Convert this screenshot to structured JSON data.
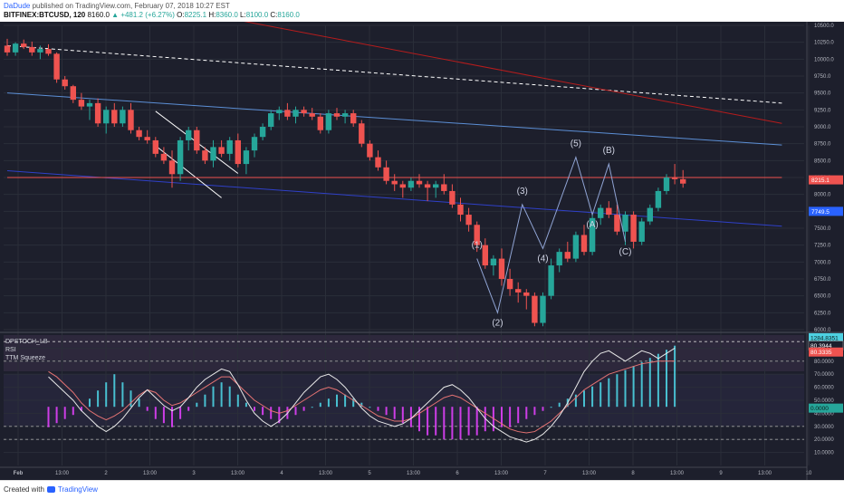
{
  "header": {
    "author": "DaDude",
    "published_text": "published on TradingView.com, February 07, 2018 10:27 EST",
    "symbol": "BITFINEX:BTCUSD, 120",
    "last": "8160.0",
    "change": "▲ +481.2 (+6.27%)",
    "o_label": "O:",
    "o": "8225.1",
    "h_label": "H:",
    "h": "8360.0",
    "l_label": "L:",
    "l": "8100.0",
    "c_label": "C:",
    "c": "8160.0"
  },
  "footer": {
    "created": "Created with",
    "brand": "TradingView"
  },
  "indicators": {
    "stoch": "DPSTOCH_LB",
    "rsi": "RSI",
    "squeeze": "TTM Squeeze"
  },
  "colors": {
    "bg": "#1d1f2c",
    "bull": "#26a69a",
    "bear": "#ef5350",
    "stoch": "#e8e8e8",
    "rsi": "#e57373",
    "squeeze_bull": "#4dd0e1",
    "squeeze_bear": "#e040fb"
  },
  "chart_data": {
    "type": "candlestick",
    "price_axis": {
      "min": 6000,
      "max": 10500,
      "ticks": [
        "10500.0",
        "10250.0",
        "10000.0",
        "9750.0",
        "9500.0",
        "9250.0",
        "9000.0",
        "8750.0",
        "8500.0",
        "8250.0",
        "8000.0",
        "7750.0",
        "7500.0",
        "7250.0",
        "7000.0",
        "6750.0",
        "6500.0",
        "6250.0",
        "6000.0"
      ]
    },
    "price_labels": [
      {
        "text": "8215.1",
        "bg": "#ef5350"
      },
      {
        "text": "7749.5",
        "bg": "#2962ff"
      }
    ],
    "osc_axis": {
      "min": 0,
      "max": 100,
      "ticks": [
        "90.0000",
        "80.0000",
        "70.0000",
        "60.0000",
        "50.0000",
        "40.0000",
        "30.0000",
        "20.0000",
        "10.0000"
      ]
    },
    "osc_labels": [
      {
        "text": "1284.8351",
        "bg": "#4dd0e1"
      },
      {
        "text": "80.3944",
        "bg": "#1d1f2c"
      },
      {
        "text": "80.3335",
        "bg": "#ef5350"
      },
      {
        "text": "0.0000",
        "bg": "#26a69a"
      }
    ],
    "time_labels": [
      "Feb",
      "13:00",
      "2",
      "13:00",
      "3",
      "13:00",
      "4",
      "13:00",
      "5",
      "13:00",
      "6",
      "13:00",
      "7",
      "13:00",
      "8",
      "13:00",
      "9",
      "13:00",
      "10"
    ],
    "candles": [
      [
        10200,
        10300,
        10050,
        10100
      ],
      [
        10100,
        10250,
        10050,
        10230
      ],
      [
        10230,
        10290,
        10150,
        10180
      ],
      [
        10180,
        10260,
        10050,
        10100
      ],
      [
        10100,
        10200,
        10000,
        10150
      ],
      [
        10150,
        10220,
        10050,
        10080
      ],
      [
        10080,
        10100,
        9650,
        9700
      ],
      [
        9700,
        9750,
        9550,
        9600
      ],
      [
        9600,
        9620,
        9350,
        9400
      ],
      [
        9400,
        9500,
        9250,
        9300
      ],
      [
        9300,
        9400,
        9100,
        9350
      ],
      [
        9350,
        9420,
        9000,
        9050
      ],
      [
        9050,
        9300,
        8900,
        9250
      ],
      [
        9250,
        9350,
        9000,
        9050
      ],
      [
        9050,
        9300,
        9000,
        9250
      ],
      [
        9250,
        9350,
        8900,
        8950
      ],
      [
        8950,
        9000,
        8800,
        8850
      ],
      [
        8850,
        8950,
        8750,
        8800
      ],
      [
        8800,
        8850,
        8550,
        8600
      ],
      [
        8600,
        8700,
        8450,
        8500
      ],
      [
        8500,
        8650,
        8100,
        8300
      ],
      [
        8300,
        8850,
        8200,
        8800
      ],
      [
        8800,
        9000,
        8650,
        8950
      ],
      [
        8950,
        9000,
        8600,
        8650
      ],
      [
        8650,
        8700,
        8450,
        8500
      ],
      [
        8500,
        8800,
        8400,
        8700
      ],
      [
        8700,
        8800,
        8550,
        8600
      ],
      [
        8600,
        8850,
        8500,
        8800
      ],
      [
        8800,
        8900,
        8400,
        8450
      ],
      [
        8450,
        8700,
        8300,
        8650
      ],
      [
        8650,
        8900,
        8550,
        8850
      ],
      [
        8850,
        9050,
        8800,
        9000
      ],
      [
        9000,
        9250,
        8950,
        9200
      ],
      [
        9200,
        9300,
        9100,
        9250
      ],
      [
        9250,
        9350,
        9100,
        9150
      ],
      [
        9150,
        9300,
        9050,
        9250
      ],
      [
        9250,
        9300,
        9150,
        9200
      ],
      [
        9200,
        9280,
        9100,
        9150
      ],
      [
        9150,
        9200,
        8900,
        8950
      ],
      [
        8950,
        9250,
        8900,
        9200
      ],
      [
        9200,
        9280,
        9100,
        9150
      ],
      [
        9150,
        9250,
        9050,
        9200
      ],
      [
        9200,
        9250,
        9000,
        9050
      ],
      [
        9050,
        9100,
        8700,
        8750
      ],
      [
        8750,
        8800,
        8500,
        8550
      ],
      [
        8550,
        8650,
        8350,
        8400
      ],
      [
        8400,
        8500,
        8150,
        8200
      ],
      [
        8200,
        8300,
        8050,
        8150
      ],
      [
        8150,
        8200,
        7950,
        8100
      ],
      [
        8100,
        8250,
        8050,
        8200
      ],
      [
        8200,
        8300,
        8100,
        8150
      ],
      [
        8150,
        8200,
        7900,
        8100
      ],
      [
        8100,
        8200,
        7950,
        8150
      ],
      [
        8150,
        8300,
        8000,
        8050
      ],
      [
        8050,
        8150,
        7800,
        7850
      ],
      [
        7850,
        7950,
        7600,
        7700
      ],
      [
        7700,
        7800,
        7450,
        7550
      ],
      [
        7550,
        7600,
        7150,
        7250
      ],
      [
        7250,
        7350,
        6900,
        6950
      ],
      [
        6950,
        7100,
        6800,
        7050
      ],
      [
        7050,
        7200,
        6650,
        6750
      ],
      [
        6750,
        6900,
        6500,
        6600
      ],
      [
        6600,
        6700,
        6400,
        6550
      ],
      [
        6550,
        6600,
        6300,
        6500
      ],
      [
        6500,
        6550,
        6050,
        6100
      ],
      [
        6100,
        6550,
        6050,
        6500
      ],
      [
        6500,
        7050,
        6450,
        6950
      ],
      [
        6950,
        7200,
        6850,
        7150
      ],
      [
        7150,
        7300,
        7000,
        7050
      ],
      [
        7050,
        7450,
        7000,
        7400
      ],
      [
        7400,
        7550,
        7100,
        7150
      ],
      [
        7150,
        7700,
        7100,
        7650
      ],
      [
        7650,
        7850,
        7550,
        7800
      ],
      [
        7800,
        7900,
        7650,
        7700
      ],
      [
        7700,
        7850,
        7400,
        7450
      ],
      [
        7450,
        7750,
        7250,
        7700
      ],
      [
        7700,
        7750,
        7200,
        7300
      ],
      [
        7300,
        7650,
        7250,
        7600
      ],
      [
        7600,
        7850,
        7550,
        7800
      ],
      [
        7800,
        8100,
        7750,
        8050
      ],
      [
        8050,
        8300,
        8000,
        8250
      ],
      [
        8250,
        8450,
        8150,
        8225
      ],
      [
        8225,
        8360,
        8100,
        8160
      ]
    ],
    "trendlines": [
      {
        "points": [
          [
            0,
            10200
          ],
          [
            94,
            9350
          ]
        ],
        "color": "#ffffff",
        "dashed": true
      },
      {
        "points": [
          [
            27,
            10600
          ],
          [
            94,
            9050
          ]
        ],
        "color": "#b71c1c",
        "dashed": false
      },
      {
        "points": [
          [
            0,
            9500
          ],
          [
            94,
            8730
          ]
        ],
        "color": "#5c8fd6",
        "dashed": false
      },
      {
        "points": [
          [
            0,
            8350
          ],
          [
            94,
            7530
          ]
        ],
        "color": "#2f40c8",
        "dashed": false
      },
      {
        "points": [
          [
            18,
            9230
          ],
          [
            28,
            8310
          ]
        ],
        "color": "#ffffff",
        "dashed": false
      },
      {
        "points": [
          [
            18,
            8720
          ],
          [
            26,
            7950
          ]
        ],
        "color": "#ffffff",
        "dashed": false
      },
      {
        "points": [
          [
            0,
            8250
          ],
          [
            94,
            8250
          ]
        ],
        "color": "#ef5350",
        "dashed": false
      }
    ],
    "wave": [
      [
        57,
        7050
      ],
      [
        59.5,
        6250
      ],
      [
        62.5,
        7850
      ],
      [
        65,
        7200
      ],
      [
        69,
        8550
      ],
      [
        71,
        7700
      ],
      [
        73,
        8450
      ],
      [
        75,
        7300
      ]
    ],
    "wave_labels": [
      "(1)",
      "(2)",
      "(3)",
      "(4)",
      "(5)",
      "(A)",
      "(B)",
      "(C)"
    ],
    "stoch": [
      68,
      62,
      56,
      50,
      42,
      36,
      30,
      26,
      30,
      36,
      44,
      52,
      58,
      52,
      46,
      42,
      45,
      52,
      60,
      66,
      70,
      74,
      72,
      62,
      50,
      40,
      34,
      30,
      34,
      40,
      48,
      56,
      62,
      68,
      70,
      66,
      60,
      52,
      44,
      38,
      34,
      32,
      30,
      32,
      36,
      42,
      48,
      54,
      60,
      62,
      58,
      52,
      44,
      36,
      30,
      26,
      22,
      20,
      18,
      20,
      24,
      30,
      38,
      48,
      60,
      72,
      80,
      86,
      88,
      84,
      80,
      84,
      88,
      86,
      82,
      86,
      90
    ],
    "rsi": [
      72,
      68,
      62,
      56,
      48,
      42,
      38,
      35,
      38,
      42,
      48,
      54,
      58,
      56,
      50,
      46,
      48,
      52,
      56,
      60,
      64,
      68,
      68,
      62,
      56,
      50,
      46,
      42,
      40,
      42,
      46,
      50,
      54,
      58,
      60,
      58,
      54,
      50,
      46,
      42,
      38,
      36,
      34,
      34,
      36,
      40,
      44,
      48,
      52,
      54,
      52,
      48,
      44,
      40,
      36,
      32,
      28,
      26,
      25,
      26,
      30,
      34,
      40,
      46,
      52,
      58,
      62,
      66,
      70,
      72,
      74,
      76,
      78,
      79,
      80,
      80,
      80
    ],
    "squeeze": [
      -5,
      -4,
      -3,
      -2,
      -1,
      2,
      4,
      6,
      8,
      6,
      4,
      2,
      -1,
      -3,
      -4,
      -5,
      -3,
      -1,
      1,
      3,
      5,
      6,
      5,
      3,
      1,
      -1,
      -2,
      -3,
      -4,
      -3,
      -2,
      -1,
      0,
      1,
      2,
      3,
      3,
      2,
      1,
      0,
      -1,
      -2,
      -3,
      -4,
      -5,
      -6,
      -7,
      -7,
      -8,
      -8,
      -8,
      -7,
      -7,
      -6,
      -6,
      -5,
      -5,
      -4,
      -3,
      -2,
      -1,
      0,
      1,
      2,
      3,
      4,
      5,
      6,
      7,
      8,
      9,
      10,
      11,
      12,
      13,
      14,
      15
    ]
  }
}
